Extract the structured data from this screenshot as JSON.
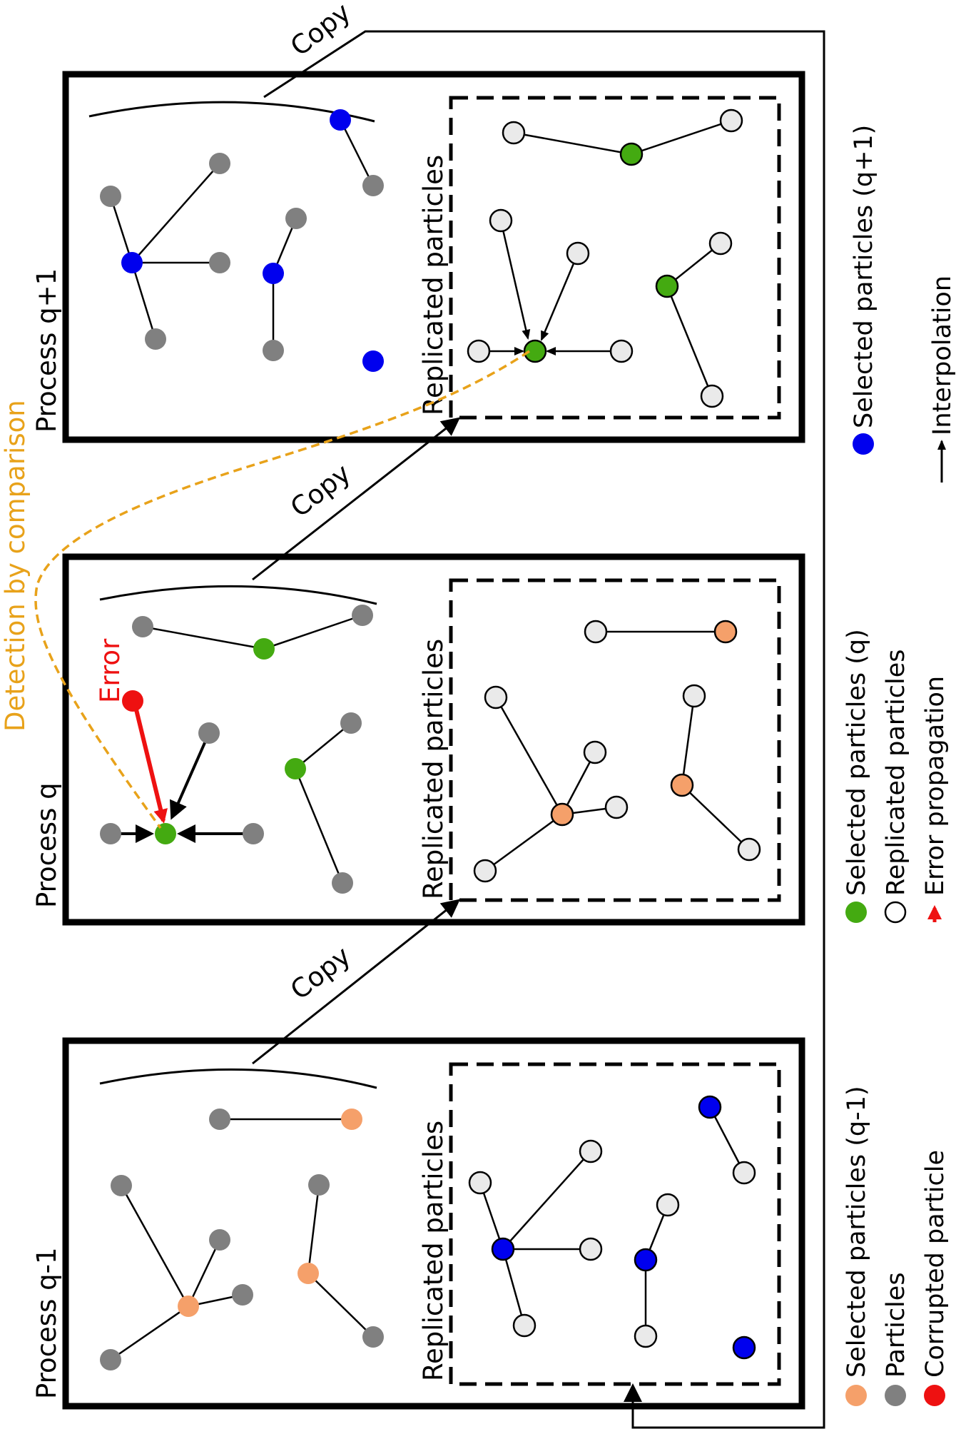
{
  "panels": [
    {
      "title": "Process q-1",
      "replicated_label": "Replicated particles"
    },
    {
      "title": "Process q",
      "replicated_label": "Replicated particles"
    },
    {
      "title": "Process q+1",
      "replicated_label": "Replicated particles"
    }
  ],
  "copy_labels": [
    "Copy",
    "Copy",
    "Copy"
  ],
  "error_label": "Error",
  "detection_label": "Detection by comparison",
  "legend": [
    {
      "label": "Selected particles (q-1)",
      "color": "#f5a06a"
    },
    {
      "label": "Particles",
      "color": "#808080"
    },
    {
      "label": "Corrupted particle",
      "color": "#ee1111"
    },
    {
      "label": "Selected particles (q)",
      "color": "#44aa11"
    },
    {
      "label": "Replicated particles",
      "color": "#ffffff"
    },
    {
      "label": "Error propagation",
      "color": "#ee1111"
    },
    {
      "label": "Selected particles (q+1)",
      "color": "#0000ee"
    },
    {
      "label": "Interpolation",
      "color": "#000000"
    }
  ],
  "colors": {
    "orange": "#f5a06a",
    "gray": "#808080",
    "blue": "#0000ee",
    "green": "#44aa11",
    "red": "#ee1111",
    "light": "#eaeaea",
    "detection": "#e8a21a"
  }
}
